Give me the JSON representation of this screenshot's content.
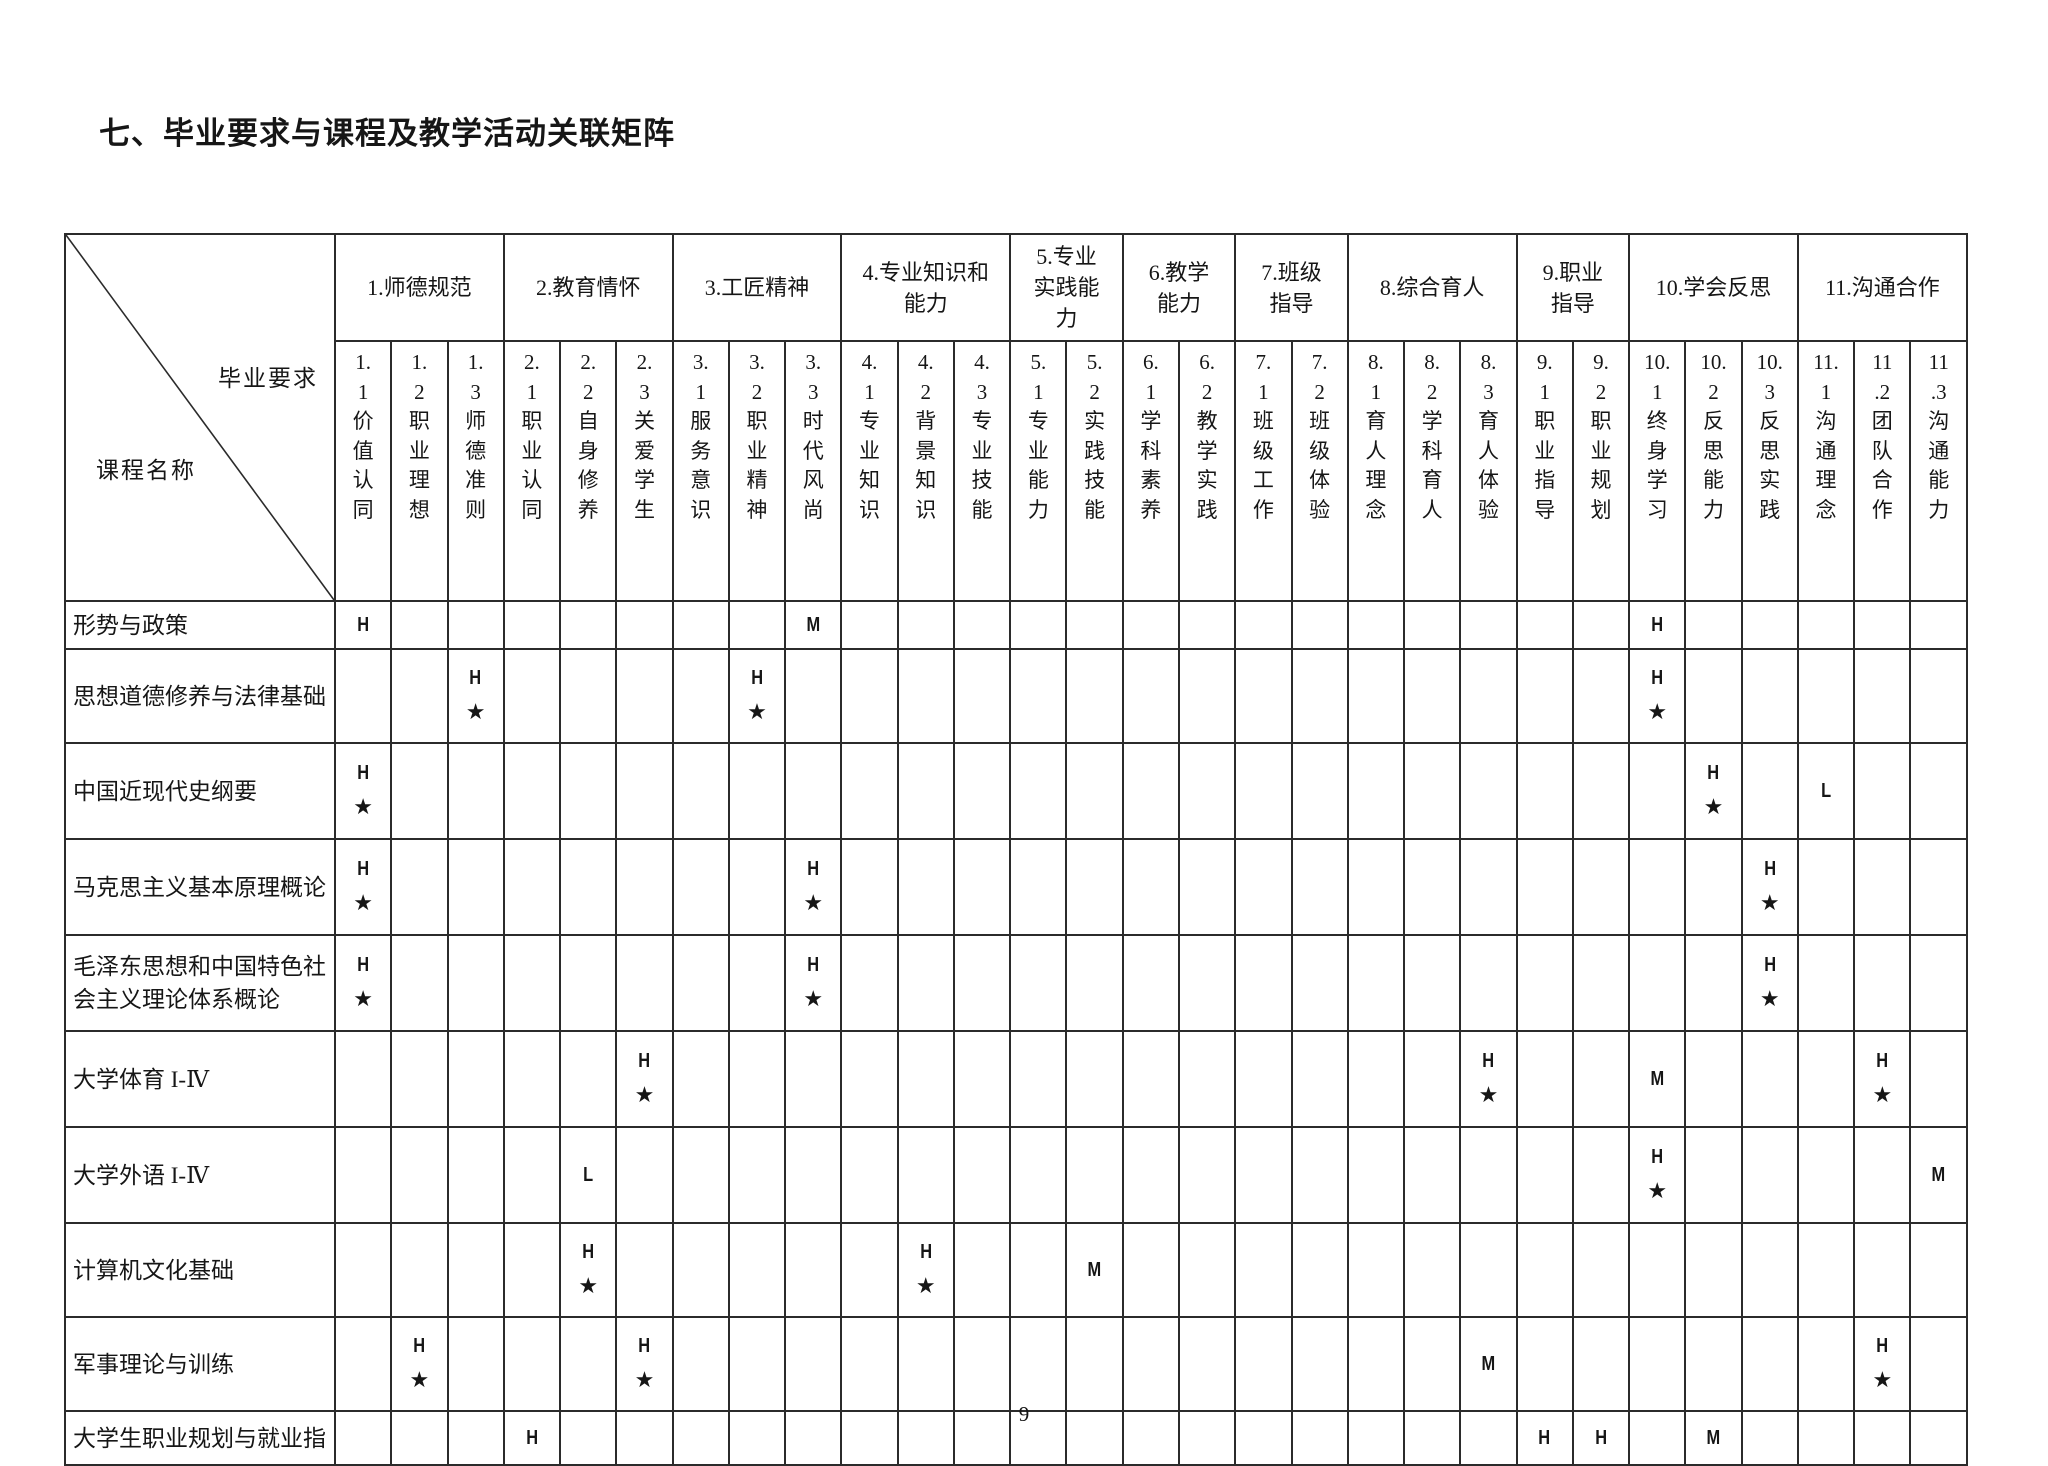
{
  "page": {
    "title": "七、毕业要求与课程及教学活动关联矩阵",
    "page_number": "9"
  },
  "matrix": {
    "corner": {
      "top_label": "毕业要求",
      "bottom_label": "课程名称"
    },
    "categories": [
      {
        "label": "1.师德规范",
        "span": 3
      },
      {
        "label": "2.教育情怀",
        "span": 3
      },
      {
        "label": "3.工匠精神",
        "span": 3
      },
      {
        "label": "4.专业知识和\n能力",
        "span": 3
      },
      {
        "label": "5.专业\n实践能\n力",
        "span": 2
      },
      {
        "label": "6.教学\n能力",
        "span": 2
      },
      {
        "label": "7.班级\n指导",
        "span": 2
      },
      {
        "label": "8.综合育人",
        "span": 3
      },
      {
        "label": "9.职业\n指导",
        "span": 2
      },
      {
        "label": "10.学会反思",
        "span": 3
      },
      {
        "label": "11.沟通合作",
        "span": 3
      }
    ],
    "sub_columns": [
      {
        "id": "1.1",
        "label": "1.\n1\n价\n值\n认\n同"
      },
      {
        "id": "1.2",
        "label": "1.\n2\n职\n业\n理\n想"
      },
      {
        "id": "1.3",
        "label": "1.\n3\n师\n德\n准\n则"
      },
      {
        "id": "2.1",
        "label": "2.\n1\n职\n业\n认\n同"
      },
      {
        "id": "2.2",
        "label": "2.\n2\n自\n身\n修\n养"
      },
      {
        "id": "2.3",
        "label": "2.\n3\n关\n爱\n学\n生"
      },
      {
        "id": "3.1",
        "label": "3.\n1\n服\n务\n意\n识"
      },
      {
        "id": "3.2",
        "label": "3.\n2\n职\n业\n精\n神"
      },
      {
        "id": "3.3",
        "label": "3.\n3\n时\n代\n风\n尚"
      },
      {
        "id": "4.1",
        "label": "4.\n1\n专\n业\n知\n识"
      },
      {
        "id": "4.2",
        "label": "4.\n2\n背\n景\n知\n识"
      },
      {
        "id": "4.3",
        "label": "4.\n3\n专\n业\n技\n能"
      },
      {
        "id": "5.1",
        "label": "5.\n1\n专\n业\n能\n力"
      },
      {
        "id": "5.2",
        "label": "5.\n2\n实\n践\n技\n能"
      },
      {
        "id": "6.1",
        "label": "6.\n1\n学\n科\n素\n养"
      },
      {
        "id": "6.2",
        "label": "6.\n2\n教\n学\n实\n践"
      },
      {
        "id": "7.1",
        "label": "7.\n1\n班\n级\n工\n作"
      },
      {
        "id": "7.2",
        "label": "7.\n2\n班\n级\n体\n验"
      },
      {
        "id": "8.1",
        "label": "8.\n1\n育\n人\n理\n念"
      },
      {
        "id": "8.2",
        "label": "8.\n2\n学\n科\n育\n人"
      },
      {
        "id": "8.3",
        "label": "8.\n3\n育\n人\n体\n验"
      },
      {
        "id": "9.1",
        "label": "9.\n1\n职\n业\n指\n导"
      },
      {
        "id": "9.2",
        "label": "9.\n2\n职\n业\n规\n划"
      },
      {
        "id": "10.1",
        "label": "10.\n1\n终\n身\n学\n习"
      },
      {
        "id": "10.2",
        "label": "10.\n2\n反\n思\n能\n力"
      },
      {
        "id": "10.3",
        "label": "10.\n3\n反\n思\n实\n践"
      },
      {
        "id": "11.1",
        "label": "11.\n1\n沟\n通\n理\n念"
      },
      {
        "id": "11.2",
        "label": "11\n.2\n团\n队\n合\n作"
      },
      {
        "id": "11.3",
        "label": "11\n.3\n沟\n通\n能\n力"
      }
    ],
    "rows": [
      {
        "course": "形势与政策",
        "marks": {
          "1.1": "H",
          "3.3": "M",
          "10.1": "H"
        }
      },
      {
        "course": "思想道德修养与法律基础",
        "marks": {
          "1.3": "H★",
          "3.2": "H★",
          "10.1": "H★"
        }
      },
      {
        "course": "中国近现代史纲要",
        "marks": {
          "1.1": "H★",
          "10.2": "H★",
          "11.1": "L"
        }
      },
      {
        "course": "马克思主义基本原理概论",
        "marks": {
          "1.1": "H★",
          "3.3": "H★",
          "10.3": "H★"
        }
      },
      {
        "course": "毛泽东思想和中国特色社\n会主义理论体系概论",
        "marks": {
          "1.1": "H★",
          "3.3": "H★",
          "10.3": "H★"
        }
      },
      {
        "course": "大学体育 I-Ⅳ",
        "marks": {
          "2.3": "H★",
          "8.3": "H★",
          "10.1": "M",
          "11.2": "H★"
        }
      },
      {
        "course": "大学外语 I-Ⅳ",
        "marks": {
          "2.2": "L",
          "10.1": "H★",
          "11.3": "M"
        }
      },
      {
        "course": "计算机文化基础",
        "marks": {
          "2.2": "H★",
          "4.2": "H★",
          "5.2": "M"
        }
      },
      {
        "course": "军事理论与训练",
        "marks": {
          "1.2": "H★",
          "2.3": "H★",
          "8.3": "M",
          "11.2": "H★"
        }
      },
      {
        "course": "大学生职业规划与就业指",
        "marks": {
          "2.1": "H",
          "9.1": "H",
          "9.2": "H",
          "10.2": "M"
        }
      }
    ]
  }
}
